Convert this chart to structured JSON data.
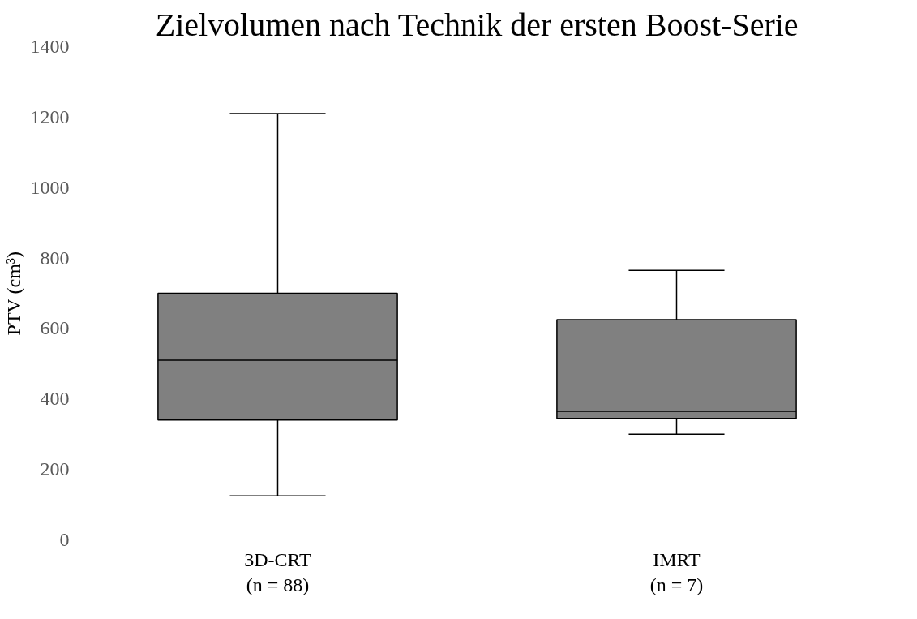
{
  "chart_data": {
    "type": "box",
    "title": "Zielvolumen nach Technik der ersten Boost-Serie",
    "ylabel": "PTV (cm³)",
    "categories": [
      "3D-CRT\n(n = 88)",
      "IMRT\n(n = 7)"
    ],
    "boxes": [
      {
        "low": 125,
        "q1": 340,
        "median": 510,
        "q3": 700,
        "high": 1210
      },
      {
        "low": 300,
        "q1": 345,
        "median": 365,
        "q3": 625,
        "high": 765
      }
    ],
    "color": "#808080",
    "ylim": [
      0,
      1400
    ],
    "yticks": [
      0,
      200,
      400,
      600,
      800,
      1000,
      1200,
      1400
    ],
    "grid": false
  }
}
